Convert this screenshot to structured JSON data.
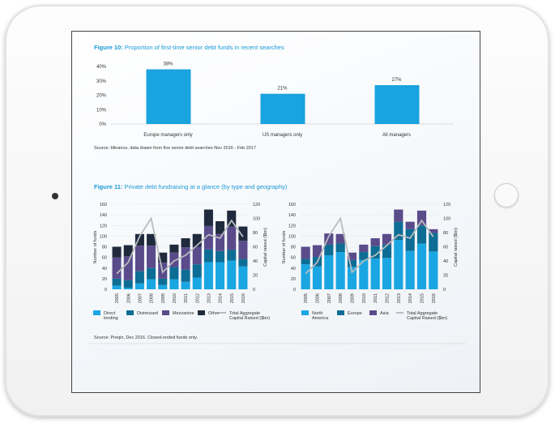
{
  "colors": {
    "title": "#1a9ad6",
    "bar": "#19a3df",
    "direct_lending": "#1aa6e2",
    "distressed": "#0d6d94",
    "mezzanine": "#5a4b8b",
    "other": "#1f2b3d",
    "north_america": "#1aa6e2",
    "europe": "#0d6d94",
    "asia": "#5a4b8b",
    "line": "#b9bcbf"
  },
  "chart_data": [
    {
      "type": "bar",
      "title_prefix": "Figure 10:",
      "title": "Proportion of first-time senior debt funds in recent searches",
      "categories": [
        "Europe managers only",
        "US managers only",
        "All managers"
      ],
      "values": [
        38,
        21,
        27
      ],
      "data_labels": [
        "38%",
        "21%",
        "27%"
      ],
      "ylim": [
        0,
        40
      ],
      "yticks": [
        "0%",
        "10%",
        "20%",
        "30%",
        "40%"
      ],
      "source": "Source: bfinance, data drawn from five senior debt searches Nov 2016 - Feb 2017"
    },
    {
      "type": "bar",
      "stacked": true,
      "title_prefix": "Figure 11:",
      "title": "Private debt fundraising at a glance (by type and geography)",
      "categories": [
        "2005",
        "2006",
        "2007",
        "2008",
        "2009",
        "2010",
        "2011",
        "2012",
        "2013",
        "2014",
        "2015",
        "2016"
      ],
      "ylabel": "Number of funds",
      "ylim": [
        0,
        160
      ],
      "yticks": [
        "0",
        "20",
        "40",
        "60",
        "80",
        "100",
        "120",
        "140",
        "160"
      ],
      "y2label": "Capital raised ($bn)",
      "y2lim": [
        0,
        120
      ],
      "y2ticks": [
        "0",
        "20",
        "40",
        "60",
        "80",
        "100",
        "120"
      ],
      "series": [
        {
          "name": "Direct lending",
          "color_key": "direct_lending",
          "values": [
            7,
            3,
            11,
            19,
            8,
            19,
            14,
            22,
            51,
            51,
            54,
            43
          ]
        },
        {
          "name": "Distressed",
          "color_key": "distressed",
          "values": [
            13,
            14,
            23,
            21,
            12,
            23,
            23,
            25,
            24,
            21,
            20,
            14
          ]
        },
        {
          "name": "Mezzanine",
          "color_key": "mezzanine",
          "values": [
            40,
            45,
            48,
            42,
            30,
            27,
            42,
            33,
            44,
            32,
            44,
            34
          ]
        },
        {
          "name": "Other",
          "color_key": "other",
          "values": [
            20,
            21,
            22,
            22,
            19,
            15,
            17,
            24,
            31,
            24,
            30,
            27
          ]
        }
      ],
      "line": {
        "name": "Total Aggregate Capital Raised ($bn)",
        "axis": "right",
        "values": [
          22,
          38,
          75,
          100,
          24,
          40,
          48,
          62,
          77,
          72,
          97,
          74
        ]
      }
    },
    {
      "type": "bar",
      "stacked": true,
      "categories": [
        "2005",
        "2006",
        "2007",
        "2008",
        "2009",
        "2010",
        "2011",
        "2012",
        "2013",
        "2014",
        "2015",
        "2016"
      ],
      "ylabel": "Number of funds",
      "ylim": [
        0,
        160
      ],
      "yticks": [
        "0",
        "20",
        "40",
        "60",
        "80",
        "100",
        "120",
        "140",
        "160"
      ],
      "y2label": "Capital raised ($bn)",
      "y2lim": [
        0,
        120
      ],
      "y2ticks": [
        "0",
        "20",
        "40",
        "60",
        "80",
        "100",
        "120"
      ],
      "series": [
        {
          "name": "North America",
          "color_key": "north_america",
          "values": [
            47,
            43,
            64,
            70,
            42,
            55,
            58,
            59,
            93,
            72,
            86,
            71
          ]
        },
        {
          "name": "Europe",
          "color_key": "europe",
          "values": [
            10,
            18,
            20,
            16,
            13,
            15,
            23,
            25,
            34,
            41,
            34,
            35
          ]
        },
        {
          "name": "Asia",
          "color_key": "asia",
          "values": [
            23,
            22,
            21,
            18,
            14,
            14,
            15,
            20,
            23,
            14,
            28,
            7
          ]
        }
      ],
      "line": {
        "name": "Total Aggregate Capital Raised ($bn)",
        "axis": "right",
        "values": [
          22,
          38,
          75,
          100,
          24,
          40,
          48,
          62,
          77,
          72,
          97,
          74
        ]
      }
    }
  ],
  "figure11_source": "Source: Preqin, Dec 2016. Closed-ended funds only."
}
